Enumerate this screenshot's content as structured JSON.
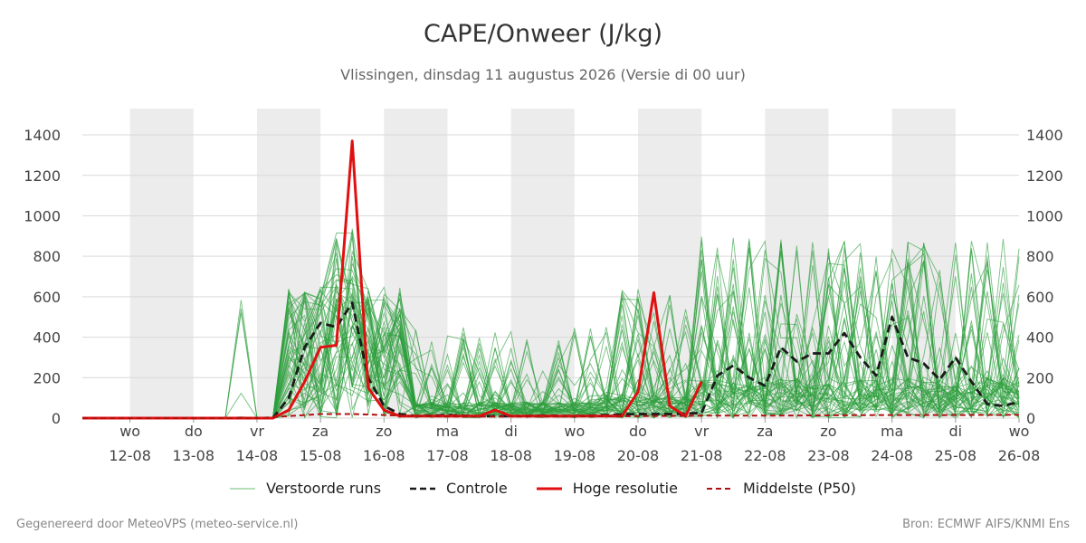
{
  "chart_data": {
    "type": "line",
    "title": "CAPE/Onweer (J/kg)",
    "subtitle": "Vlissingen, dinsdag 11 augustus 2026 (Versie di 00 uur)",
    "xlabel": "",
    "ylabel": "",
    "ylim": [
      0,
      1530
    ],
    "y_ticks": [
      0,
      200,
      400,
      600,
      800,
      1000,
      1200,
      1400
    ],
    "x_range_days": [
      11.25,
      26.0
    ],
    "grid": "horizontal",
    "legend_position": "bottom-center",
    "x_tick_labels": [
      {
        "day": 12,
        "weekday": "wo",
        "date": "12-08"
      },
      {
        "day": 13,
        "weekday": "do",
        "date": "13-08"
      },
      {
        "day": 14,
        "weekday": "vr",
        "date": "14-08"
      },
      {
        "day": 15,
        "weekday": "za",
        "date": "15-08"
      },
      {
        "day": 16,
        "weekday": "zo",
        "date": "16-08"
      },
      {
        "day": 17,
        "weekday": "ma",
        "date": "17-08"
      },
      {
        "day": 18,
        "weekday": "di",
        "date": "18-08"
      },
      {
        "day": 19,
        "weekday": "wo",
        "date": "19-08"
      },
      {
        "day": 20,
        "weekday": "do",
        "date": "20-08"
      },
      {
        "day": 21,
        "weekday": "vr",
        "date": "21-08"
      },
      {
        "day": 22,
        "weekday": "za",
        "date": "22-08"
      },
      {
        "day": 23,
        "weekday": "zo",
        "date": "23-08"
      },
      {
        "day": 24,
        "weekday": "ma",
        "date": "24-08"
      },
      {
        "day": 25,
        "weekday": "di",
        "date": "25-08"
      },
      {
        "day": 26,
        "weekday": "wo",
        "date": "26-08"
      }
    ],
    "weekend_shading": [
      [
        12,
        13
      ],
      [
        14,
        15
      ],
      [
        16,
        17
      ],
      [
        18,
        19
      ],
      [
        20,
        21
      ],
      [
        22,
        23
      ],
      [
        24,
        25
      ]
    ],
    "series": [
      {
        "name": "Controle",
        "color": "#1a1a1a",
        "dash": true,
        "x": [
          11.25,
          12,
          13,
          13.5,
          14,
          14.25,
          14.5,
          14.75,
          15,
          15.25,
          15.5,
          15.75,
          16,
          16.25,
          16.5,
          17,
          17.5,
          18,
          18.5,
          19,
          19.5,
          20,
          20.5,
          21,
          21.25,
          21.5,
          21.75,
          22,
          22.25,
          22.5,
          22.75,
          23,
          23.25,
          23.5,
          23.75,
          24,
          24.25,
          24.5,
          24.75,
          25,
          25.25,
          25.5,
          25.75,
          26
        ],
        "y": [
          0,
          0,
          0,
          0,
          0,
          0,
          100,
          350,
          470,
          450,
          570,
          200,
          60,
          20,
          10,
          15,
          10,
          10,
          12,
          10,
          15,
          20,
          20,
          25,
          210,
          260,
          200,
          160,
          350,
          280,
          320,
          320,
          420,
          300,
          210,
          500,
          300,
          270,
          190,
          300,
          180,
          70,
          60,
          80
        ]
      },
      {
        "name": "Hoge resolutie",
        "color": "#e01010",
        "dash": false,
        "x": [
          11.25,
          12,
          13,
          13.5,
          14,
          14.25,
          14.5,
          14.75,
          15,
          15.25,
          15.5,
          15.75,
          16,
          16.25,
          16.5,
          17,
          17.5,
          17.75,
          18,
          18.5,
          19,
          19.5,
          19.75,
          20,
          20.25,
          20.5,
          20.75,
          21
        ],
        "y": [
          0,
          0,
          0,
          0,
          0,
          0,
          40,
          180,
          350,
          360,
          1370,
          150,
          40,
          10,
          10,
          10,
          10,
          40,
          10,
          10,
          10,
          10,
          10,
          130,
          620,
          60,
          10,
          180
        ]
      },
      {
        "name": "Middelste (P50)",
        "color": "#b01010",
        "dash": true,
        "x": [
          11.25,
          12,
          13,
          14,
          14.5,
          15,
          15.5,
          16,
          16.5,
          17,
          18,
          19,
          20,
          21,
          22,
          23,
          24,
          25,
          26
        ],
        "y": [
          0,
          0,
          0,
          0,
          10,
          20,
          20,
          15,
          10,
          8,
          8,
          8,
          10,
          12,
          12,
          14,
          15,
          15,
          16
        ]
      }
    ],
    "ensemble": {
      "name": "Verstoorde runs",
      "color": "#2e9e3e",
      "member_count": 50
    }
  },
  "legend": {
    "perturbed": "Verstoorde runs",
    "control": "Controle",
    "hires": "Hoge resolutie",
    "median": "Middelste (P50)"
  },
  "footer": {
    "left": "Gegenereerd door MeteoVPS (meteo-service.nl)",
    "right": "Bron: ECMWF AIFS/KNMI Ens"
  }
}
